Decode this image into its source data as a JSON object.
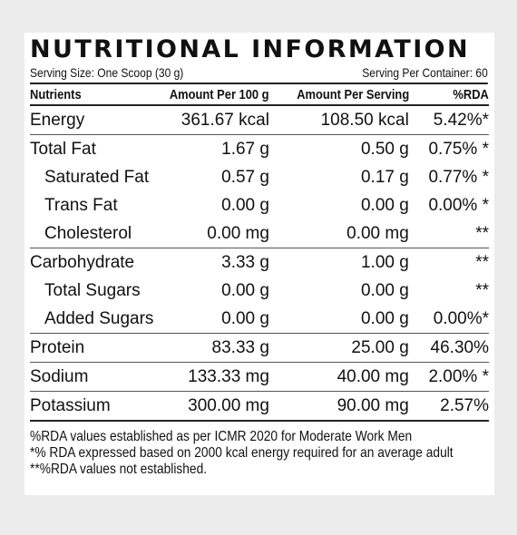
{
  "label": {
    "title": "NUTRITIONAL INFORMATION",
    "serving_size": "Serving Size: One Scoop (30 g)",
    "servings_per_container": "Serving Per Container: 60",
    "headers": {
      "nutrients": "Nutrients",
      "per_100g": "Amount Per 100 g",
      "per_serving": "Amount Per Serving",
      "rda": "%RDA"
    },
    "rows": [
      {
        "name": "Energy",
        "per100": "361.67 kcal",
        "serving": "108.50 kcal",
        "rda": "5.42%*"
      },
      {
        "name": "Total Fat",
        "per100": "1.67 g",
        "serving": "0.50 g",
        "rda": "0.75% *"
      },
      {
        "name": "Saturated Fat",
        "per100": "0.57 g",
        "serving": "0.17 g",
        "rda": "0.77% *"
      },
      {
        "name": "Trans Fat",
        "per100": "0.00 g",
        "serving": "0.00 g",
        "rda": "0.00% *"
      },
      {
        "name": "Cholesterol",
        "per100": "0.00 mg",
        "serving": "0.00 mg",
        "rda": "**"
      },
      {
        "name": "Carbohydrate",
        "per100": "3.33 g",
        "serving": "1.00 g",
        "rda": "**"
      },
      {
        "name": "Total Sugars",
        "per100": "0.00 g",
        "serving": "0.00 g",
        "rda": "**"
      },
      {
        "name": "Added Sugars",
        "per100": "0.00 g",
        "serving": "0.00 g",
        "rda": "0.00%*"
      },
      {
        "name": "Protein",
        "per100": "83.33 g",
        "serving": "25.00 g",
        "rda": "46.30%"
      },
      {
        "name": "Sodium",
        "per100": "133.33 mg",
        "serving": "40.00 mg",
        "rda": "2.00% *"
      },
      {
        "name": "Potassium",
        "per100": "300.00 mg",
        "serving": "90.00 mg",
        "rda": "2.57%"
      }
    ],
    "notes": [
      "%RDA values established as per ICMR 2020 for Moderate Work Men",
      "*% RDA expressed based on 2000 kcal energy required for an average adult",
      "**%RDA values not established."
    ]
  }
}
